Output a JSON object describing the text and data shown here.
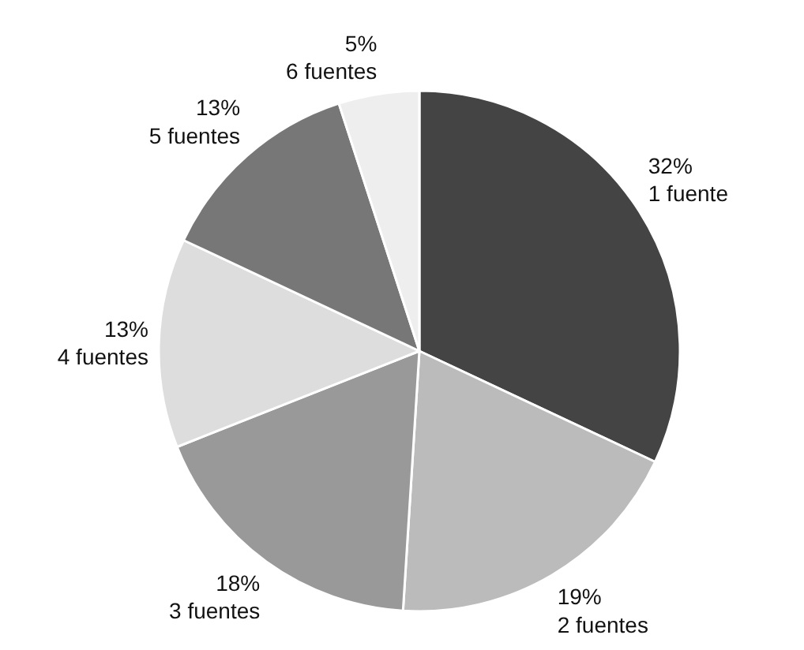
{
  "chart_data": {
    "type": "pie",
    "categories": [
      "1 fuente",
      "2 fuentes",
      "3 fuentes",
      "4 fuentes",
      "5 fuentes",
      "6 fuentes"
    ],
    "values": [
      32,
      19,
      18,
      13,
      13,
      5
    ],
    "value_labels": [
      "32%",
      "19%",
      "18%",
      "13%",
      "13%",
      "5%"
    ],
    "colors": [
      "#444444",
      "#bbbbbb",
      "#999999",
      "#dddddd",
      "#777777",
      "#eeeeee"
    ]
  }
}
